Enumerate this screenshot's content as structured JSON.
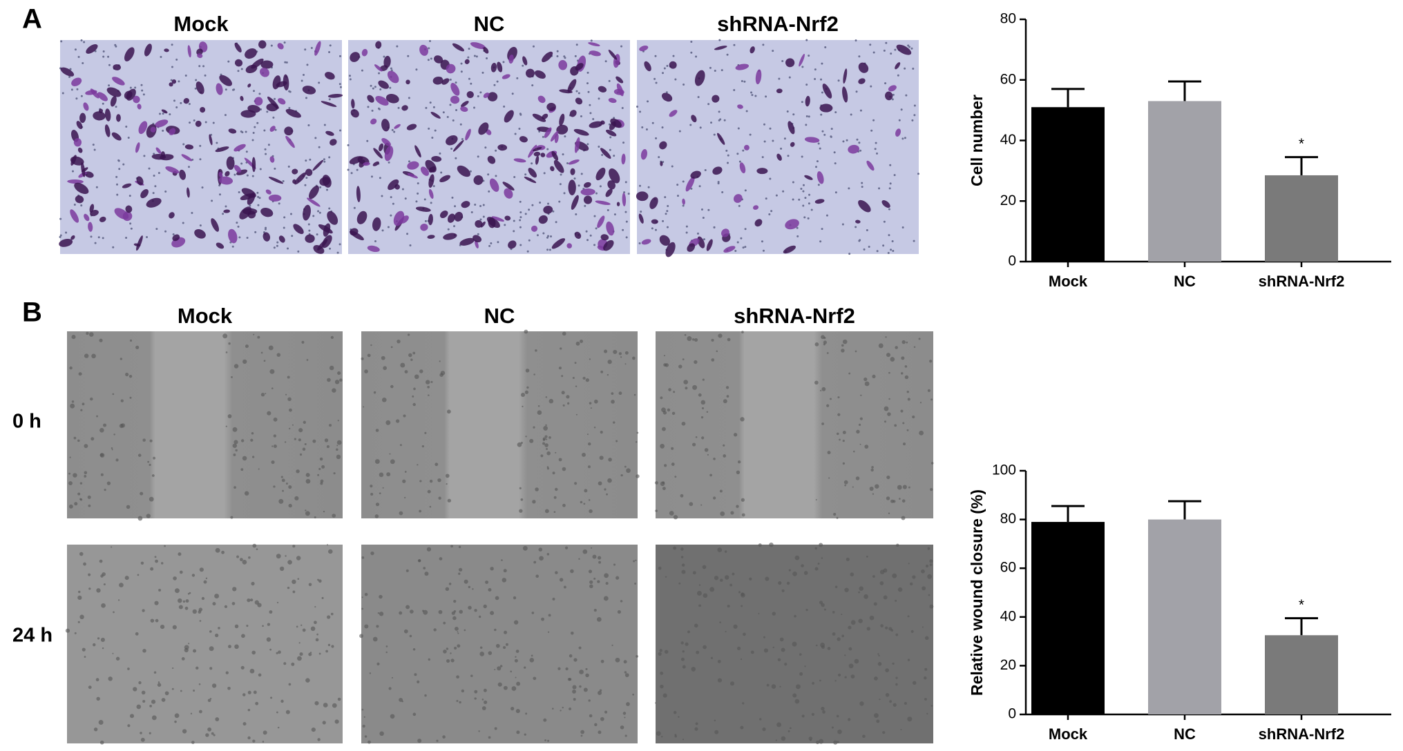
{
  "panels": {
    "a": "A",
    "b": "B"
  },
  "columns": [
    "Mock",
    "NC",
    "shRNA-Nrf2"
  ],
  "rows": [
    "0 h",
    "24 h"
  ],
  "chart_data": [
    {
      "type": "bar",
      "y_label": "Cell number",
      "categories": [
        "Mock",
        "NC",
        "shRNA-Nrf2"
      ],
      "values": [
        51,
        53,
        28.5
      ],
      "errors": [
        6,
        6.5,
        6
      ],
      "colors": [
        "#000000",
        "#a2a2a8",
        "#7a7a7a"
      ],
      "ylim": [
        0,
        80
      ],
      "yticks": [
        0,
        20,
        40,
        60,
        80
      ],
      "annotations": [
        {
          "category": "shRNA-Nrf2",
          "text": "*"
        }
      ]
    },
    {
      "type": "bar",
      "y_label": "Relative wound closure (%)",
      "categories": [
        "Mock",
        "NC",
        "shRNA-Nrf2"
      ],
      "values": [
        79,
        80,
        32.5
      ],
      "errors": [
        6.5,
        7.5,
        7
      ],
      "colors": [
        "#000000",
        "#a2a2a8",
        "#7a7a7a"
      ],
      "ylim": [
        0,
        100
      ],
      "yticks": [
        0,
        20,
        40,
        60,
        80,
        100
      ],
      "annotations": [
        {
          "category": "shRNA-Nrf2",
          "text": "*"
        }
      ]
    }
  ]
}
